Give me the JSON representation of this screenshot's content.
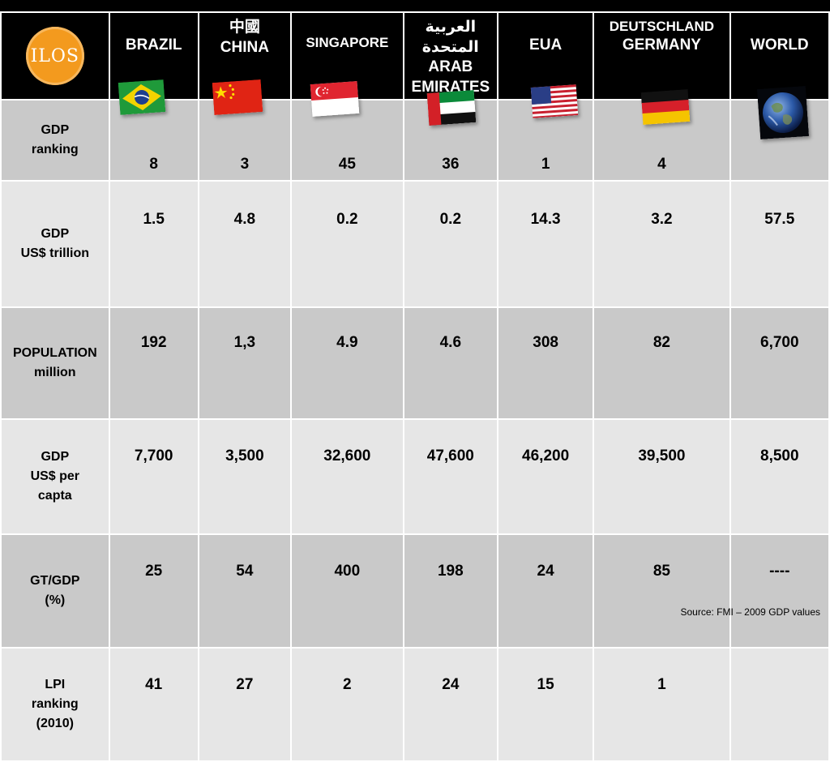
{
  "logo": {
    "text": "ILOS"
  },
  "columns": [
    {
      "lines": [
        "BRAZIL"
      ]
    },
    {
      "lines": [
        "中國",
        "CHINA"
      ]
    },
    {
      "lines": [
        "SINGAPORE"
      ]
    },
    {
      "lines": [
        "العربية المتحدة",
        "ARAB",
        "EMIRATES"
      ]
    },
    {
      "lines": [
        "EUA"
      ]
    },
    {
      "lines": [
        "DEUTSCHLAND",
        "GERMANY"
      ]
    },
    {
      "lines": [
        "WORLD"
      ]
    }
  ],
  "rows": [
    {
      "label": [
        "GDP",
        "ranking"
      ],
      "values": [
        "8",
        "3",
        "45",
        "36",
        "1",
        "4",
        ""
      ]
    },
    {
      "label": [
        "GDP",
        "US$ trillion"
      ],
      "values": [
        "1.5",
        "4.8",
        "0.2",
        "0.2",
        "14.3",
        "3.2",
        "57.5"
      ]
    },
    {
      "label": [
        "POPULATION",
        "million"
      ],
      "values": [
        "192",
        "1,3",
        "4.9",
        "4.6",
        "308",
        "82",
        "6,700"
      ]
    },
    {
      "label": [
        "GDP",
        "US$ per",
        "capta"
      ],
      "values": [
        "7,700",
        "3,500",
        "32,600",
        "47,600",
        "46,200",
        "39,500",
        "8,500"
      ]
    },
    {
      "label": [
        "GT/GDP",
        "(%)"
      ],
      "values": [
        "25",
        "54",
        "400",
        "198",
        "24",
        "85",
        "----"
      ]
    },
    {
      "label": [
        "LPI",
        "ranking",
        "(2010)"
      ],
      "values": [
        "41",
        "27",
        "2",
        "24",
        "15",
        "1",
        ""
      ]
    }
  ],
  "source": "Source: FMI – 2009 GDP  values",
  "colors": {
    "header_bg": "#000000",
    "row_dark": "#c9c9c9",
    "row_light": "#e6e6e6",
    "logo_orange": "#f39a1e"
  }
}
